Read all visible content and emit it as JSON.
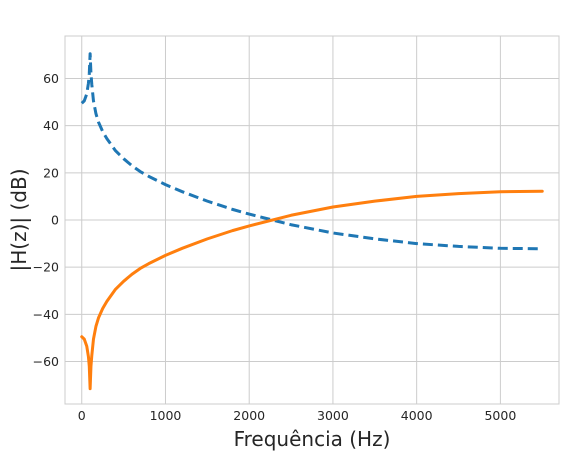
{
  "chart_data": {
    "type": "line",
    "title": "",
    "xlabel": "Frequência (Hz)",
    "ylabel": "|H(z)| (dB)",
    "xlim": [
      -200,
      5700
    ],
    "ylim": [
      -78,
      78
    ],
    "xticks": [
      0,
      1000,
      2000,
      3000,
      4000,
      5000
    ],
    "yticks": [
      -60,
      -40,
      -20,
      0,
      20,
      40,
      60
    ],
    "xtick_labels": [
      "0",
      "1000",
      "2000",
      "3000",
      "4000",
      "5000"
    ],
    "ytick_labels": [
      "−60",
      "−40",
      "−20",
      "0",
      "20",
      "40",
      "60"
    ],
    "grid": true,
    "series": [
      {
        "color": "#1f77b4",
        "dash": "dashed",
        "x": [
          0,
          30,
          60,
          80,
          90,
          100,
          110,
          120,
          140,
          170,
          200,
          250,
          300,
          400,
          500,
          600,
          700,
          800,
          1000,
          1200,
          1500,
          1800,
          2000,
          2500,
          3000,
          3500,
          4000,
          4500,
          5000,
          5500
        ],
        "y": [
          49.5,
          50.5,
          53.5,
          58,
          62,
          70.5,
          62,
          57.5,
          50.5,
          45,
          41.5,
          37.5,
          34.5,
          29.5,
          26,
          23,
          20.5,
          18.5,
          15,
          12,
          8,
          4.5,
          2.5,
          -2,
          -5.5,
          -8,
          -10,
          -11.2,
          -12,
          -12.2
        ]
      },
      {
        "color": "#ff7f0e",
        "dash": "solid",
        "x": [
          0,
          30,
          60,
          80,
          90,
          100,
          110,
          120,
          140,
          170,
          200,
          250,
          300,
          400,
          500,
          600,
          700,
          800,
          1000,
          1200,
          1500,
          1800,
          2000,
          2500,
          3000,
          3500,
          4000,
          4500,
          5000,
          5500
        ],
        "y": [
          -49.5,
          -50.5,
          -53.5,
          -58,
          -62,
          -71.5,
          -62,
          -57.5,
          -50.5,
          -45,
          -41.5,
          -37.5,
          -34.5,
          -29.5,
          -26,
          -23,
          -20.5,
          -18.5,
          -15,
          -12,
          -8,
          -4.5,
          -2.5,
          2,
          5.5,
          8,
          10,
          11.2,
          12,
          12.2
        ]
      }
    ]
  }
}
